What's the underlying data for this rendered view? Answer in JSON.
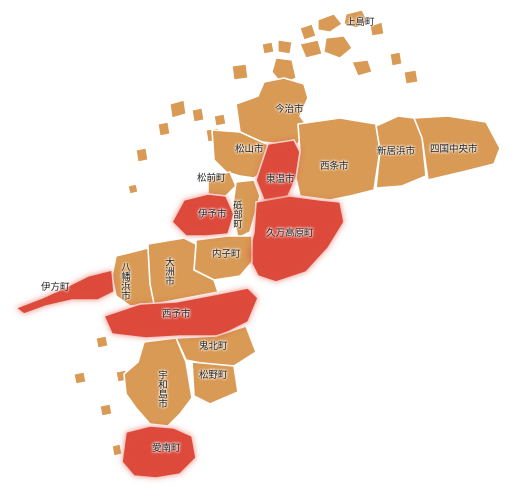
{
  "map": {
    "colors": {
      "land": "#d89a55",
      "highlight": "#dd4a3c",
      "border": "#ffffff",
      "label": "#222222"
    },
    "municipalities": [
      {
        "key": "kamijima",
        "label": "上島町",
        "highlighted": false
      },
      {
        "key": "imabari",
        "label": "今治市",
        "highlighted": false
      },
      {
        "key": "matsuyama",
        "label": "松山市",
        "highlighted": false
      },
      {
        "key": "toon",
        "label": "東温市",
        "highlighted": true
      },
      {
        "key": "saijo",
        "label": "西条市",
        "highlighted": false
      },
      {
        "key": "niihama",
        "label": "新居浜市",
        "highlighted": false
      },
      {
        "key": "shikokuchuo",
        "label": "四国中央市",
        "highlighted": false
      },
      {
        "key": "masaki",
        "label": "松前町",
        "highlighted": false
      },
      {
        "key": "tobe",
        "label": "砥部町",
        "highlighted": false
      },
      {
        "key": "iyo",
        "label": "伊予市",
        "highlighted": true
      },
      {
        "key": "kumakogen",
        "label": "久万高原町",
        "highlighted": true
      },
      {
        "key": "uchiko",
        "label": "内子町",
        "highlighted": false
      },
      {
        "key": "ozu",
        "label": "大洲市",
        "highlighted": false
      },
      {
        "key": "yawatahama",
        "label": "八幡浜市",
        "highlighted": false
      },
      {
        "key": "ikata",
        "label": "伊方町",
        "highlighted": true
      },
      {
        "key": "seiyo",
        "label": "西予市",
        "highlighted": true
      },
      {
        "key": "kihoku",
        "label": "鬼北町",
        "highlighted": false
      },
      {
        "key": "matsuno",
        "label": "松野町",
        "highlighted": false
      },
      {
        "key": "uwajima",
        "label": "宇和島市",
        "highlighted": false
      },
      {
        "key": "ainan",
        "label": "愛南町",
        "highlighted": true
      }
    ]
  }
}
